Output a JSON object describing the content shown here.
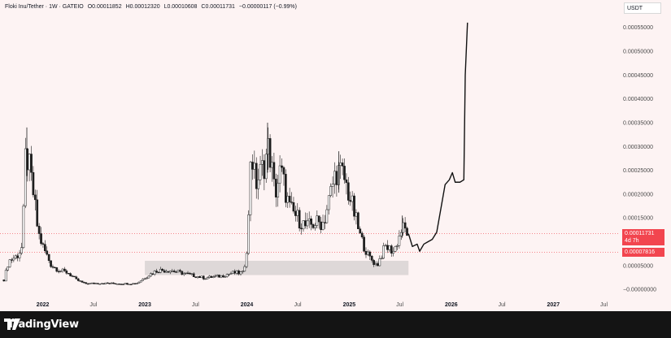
{
  "header": {
    "symbol": "Floki Inu/Tether · 1W · GATEIO",
    "open": "O0.00011852",
    "high": "H0.00012320",
    "low": "L0.00010608",
    "close": "C0.00011731",
    "change": "−0.00000117 (−0.99%)"
  },
  "currency": "USDT",
  "price_tags": {
    "current": "0.00011731",
    "countdown": "4d 7h",
    "second": "0.00007816"
  },
  "brand": "TradingView",
  "colors": {
    "background": "#fdf3f3",
    "up": "#1d1d1d",
    "down": "#1d1d1d",
    "zone": "#d8d2d2",
    "price_line": "#f2454f",
    "projection": "#111111"
  },
  "chart_data": {
    "type": "candlestick",
    "y_axis_labels": [
      "0.00055000",
      "0.00050000",
      "0.00045000",
      "0.00040000",
      "0.00035000",
      "0.00030000",
      "0.00025000",
      "0.00020000",
      "0.00015000",
      "0.00005000",
      "−0.00000000"
    ],
    "ylim": [
      -1e-05,
      0.00057
    ],
    "x_axis_labels": [
      "2022",
      "Jul",
      "2023",
      "Jul",
      "2024",
      "Jul",
      "2025",
      "Jul",
      "2026",
      "Jul",
      "2027",
      "Jul"
    ],
    "x_axis_year_labels": [
      "2022",
      "2023",
      "2024",
      "2025",
      "2026",
      "2027"
    ],
    "x_start": "2021-08-01",
    "x_end": "2027-08-15",
    "price_series": [
      {
        "date": "2021-08-15",
        "v": 2e-05
      },
      {
        "date": "2021-09-01",
        "v": 6e-05
      },
      {
        "date": "2021-10-01",
        "v": 7e-05
      },
      {
        "date": "2021-10-20",
        "v": 9e-05
      },
      {
        "date": "2021-11-01",
        "v": 0.00029
      },
      {
        "date": "2021-11-15",
        "v": 0.00025
      },
      {
        "date": "2021-12-01",
        "v": 0.00019
      },
      {
        "date": "2021-12-15",
        "v": 0.00012
      },
      {
        "date": "2022-01-01",
        "v": 9e-05
      },
      {
        "date": "2022-02-01",
        "v": 5e-05
      },
      {
        "date": "2022-03-01",
        "v": 4e-05
      },
      {
        "date": "2022-04-01",
        "v": 3.5e-05
      },
      {
        "date": "2022-05-01",
        "v": 2e-05
      },
      {
        "date": "2022-06-01",
        "v": 1.2e-05
      },
      {
        "date": "2022-08-01",
        "v": 1.3e-05
      },
      {
        "date": "2022-10-01",
        "v": 1.2e-05
      },
      {
        "date": "2022-12-01",
        "v": 1.2e-05
      },
      {
        "date": "2023-01-15",
        "v": 3e-05
      },
      {
        "date": "2023-02-15",
        "v": 4e-05
      },
      {
        "date": "2023-04-01",
        "v": 4e-05
      },
      {
        "date": "2023-06-01",
        "v": 3.2e-05
      },
      {
        "date": "2023-08-01",
        "v": 2.4e-05
      },
      {
        "date": "2023-10-01",
        "v": 2.8e-05
      },
      {
        "date": "2023-11-15",
        "v": 3.5e-05
      },
      {
        "date": "2023-12-20",
        "v": 3.4e-05
      },
      {
        "date": "2024-01-05",
        "v": 0.00011
      },
      {
        "date": "2024-01-15",
        "v": 0.0003
      },
      {
        "date": "2024-02-01",
        "v": 0.00022
      },
      {
        "date": "2024-03-01",
        "v": 0.00026
      },
      {
        "date": "2024-03-20",
        "v": 0.0003
      },
      {
        "date": "2024-04-10",
        "v": 0.0002
      },
      {
        "date": "2024-05-01",
        "v": 0.00025
      },
      {
        "date": "2024-06-01",
        "v": 0.00017
      },
      {
        "date": "2024-07-01",
        "v": 0.00015
      },
      {
        "date": "2024-08-01",
        "v": 0.00013
      },
      {
        "date": "2024-09-01",
        "v": 0.00014
      },
      {
        "date": "2024-10-01",
        "v": 0.00014
      },
      {
        "date": "2024-11-15",
        "v": 0.00025
      },
      {
        "date": "2024-12-10",
        "v": 0.00024
      },
      {
        "date": "2025-01-10",
        "v": 0.00018
      },
      {
        "date": "2025-02-10",
        "v": 0.00011
      },
      {
        "date": "2025-03-10",
        "v": 7e-05
      },
      {
        "date": "2025-04-10",
        "v": 5e-05
      },
      {
        "date": "2025-05-10",
        "v": 9e-05
      },
      {
        "date": "2025-06-10",
        "v": 8e-05
      },
      {
        "date": "2025-07-10",
        "v": 0.00013
      },
      {
        "date": "2025-08-01",
        "v": 0.000117
      }
    ],
    "wick_highs": [
      {
        "date": "2021-11-05",
        "v": 0.00034
      },
      {
        "date": "2024-03-15",
        "v": 0.00035
      },
      {
        "date": "2024-11-25",
        "v": 0.00029
      },
      {
        "date": "2025-07-10",
        "v": 0.000155
      }
    ],
    "support_zone": {
      "x0": "2023-01-01",
      "x1": "2025-08-01",
      "y0": 3e-05,
      "y1": 6e-05
    },
    "projection": [
      {
        "date": "2025-08-01",
        "v": 0.000117
      },
      {
        "date": "2025-08-15",
        "v": 9e-05
      },
      {
        "date": "2025-09-01",
        "v": 9.5e-05
      },
      {
        "date": "2025-09-10",
        "v": 8e-05
      },
      {
        "date": "2025-09-25",
        "v": 9.5e-05
      },
      {
        "date": "2025-10-10",
        "v": 0.0001
      },
      {
        "date": "2025-10-25",
        "v": 0.000105
      },
      {
        "date": "2025-11-10",
        "v": 0.00012
      },
      {
        "date": "2025-11-25",
        "v": 0.00017
      },
      {
        "date": "2025-12-10",
        "v": 0.00022
      },
      {
        "date": "2025-12-25",
        "v": 0.00023
      },
      {
        "date": "2026-01-05",
        "v": 0.000245
      },
      {
        "date": "2026-01-15",
        "v": 0.000225
      },
      {
        "date": "2026-02-01",
        "v": 0.000225
      },
      {
        "date": "2026-02-15",
        "v": 0.00023
      },
      {
        "date": "2026-02-20",
        "v": 0.00045
      },
      {
        "date": "2026-02-28",
        "v": 0.00056
      }
    ],
    "reference_lines": [
      {
        "value": 0.000117,
        "style": "dotted"
      },
      {
        "value": 7.8e-05,
        "style": "dotted"
      }
    ]
  }
}
